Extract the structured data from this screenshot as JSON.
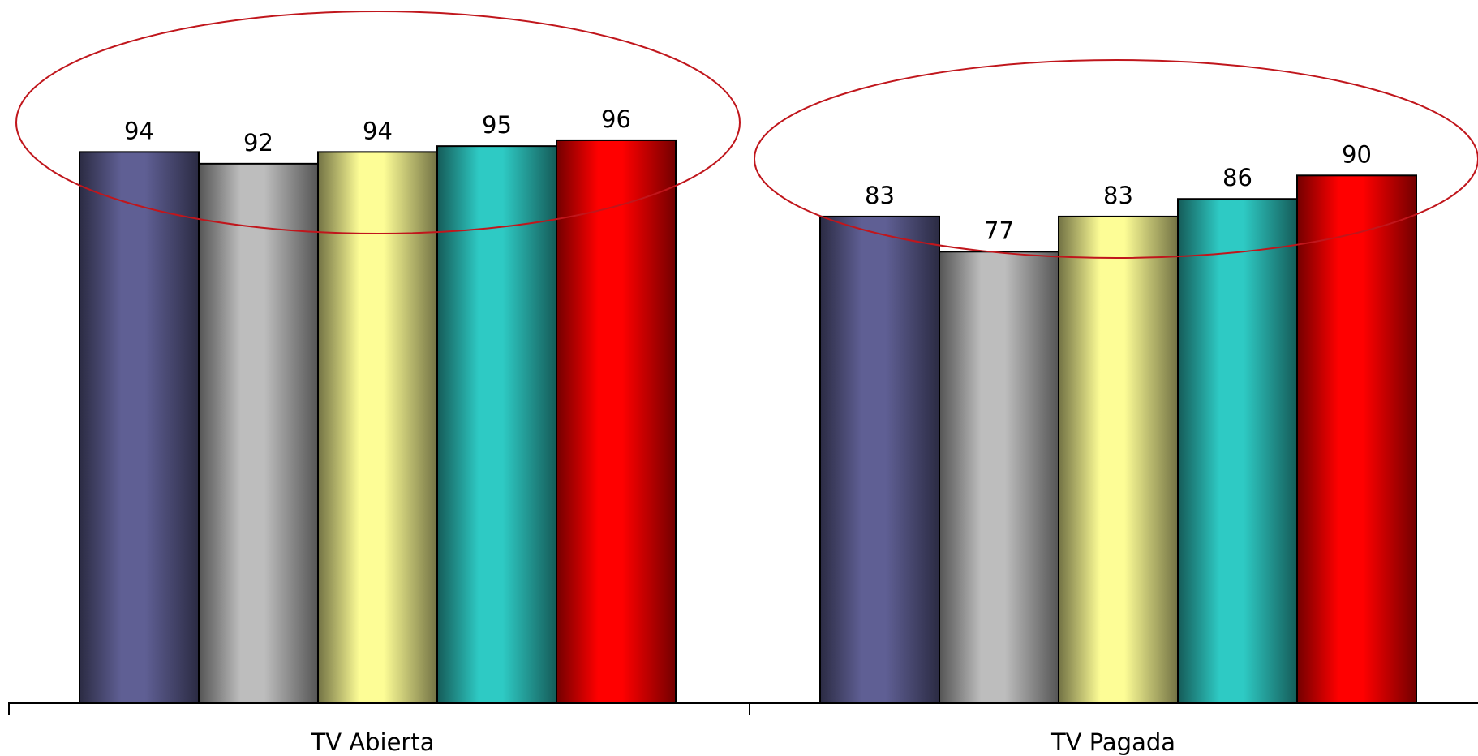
{
  "chart_data": {
    "type": "bar",
    "categories": [
      "TV Abierta",
      "TV Pagada"
    ],
    "series": [
      {
        "values": [
          94,
          83
        ],
        "color": "#5f5f94"
      },
      {
        "values": [
          92,
          77
        ],
        "color": "#bdbdbd"
      },
      {
        "values": [
          94,
          83
        ],
        "color": "#fdfd96"
      },
      {
        "values": [
          95,
          86
        ],
        "color": "#2ecac4"
      },
      {
        "values": [
          96,
          90
        ],
        "color": "#ff0000"
      }
    ],
    "ylim": [
      0,
      100
    ],
    "grid": false,
    "legend": "none",
    "data_labels": true,
    "highlight_color": "#c0161c"
  }
}
